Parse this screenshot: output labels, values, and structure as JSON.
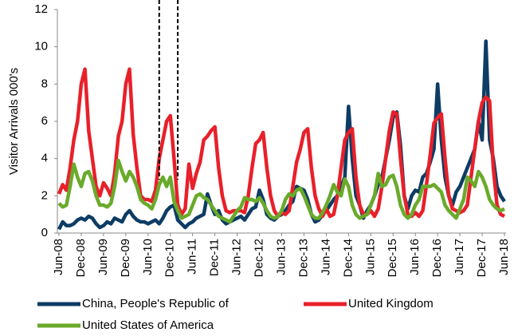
{
  "chart_data": {
    "type": "line",
    "y_label": "Visitor Arrivals 000's",
    "categories": [
      "Jun-08",
      null,
      null,
      null,
      null,
      null,
      "Dec-08",
      null,
      null,
      null,
      null,
      null,
      "Jun-09",
      null,
      null,
      null,
      null,
      null,
      "Dec-09",
      null,
      null,
      null,
      null,
      null,
      "Jun-10",
      null,
      null,
      null,
      null,
      null,
      "Dec-10",
      null,
      null,
      null,
      null,
      null,
      "Jun-11",
      null,
      null,
      null,
      null,
      null,
      "Dec-11",
      null,
      null,
      null,
      null,
      null,
      "Jun-12",
      null,
      null,
      null,
      null,
      null,
      "Dec-12",
      null,
      null,
      null,
      null,
      null,
      "Jun-13",
      null,
      null,
      null,
      null,
      null,
      "Dec-13",
      null,
      null,
      null,
      null,
      null,
      "Jun-14",
      null,
      null,
      null,
      null,
      null,
      "Dec-14",
      null,
      null,
      null,
      null,
      null,
      "Jun-15",
      null,
      null,
      null,
      null,
      null,
      "Dec-15",
      null,
      null,
      null,
      null,
      null,
      "Jun-16",
      null,
      null,
      null,
      null,
      null,
      "Dec-16",
      null,
      null,
      null,
      null,
      null,
      "Jun-17",
      null,
      null,
      null,
      null,
      null,
      "Dec-17",
      null,
      null,
      null,
      null,
      null,
      "Jun-18"
    ],
    "series": [
      {
        "name": "China, People's Republic of",
        "color": "#0d3c64",
        "values": [
          0.2,
          0.6,
          0.4,
          0.4,
          0.5,
          0.7,
          0.8,
          0.7,
          0.9,
          0.8,
          0.5,
          0.3,
          0.4,
          0.6,
          0.5,
          0.8,
          0.7,
          0.6,
          1.0,
          1.2,
          0.9,
          0.7,
          0.6,
          0.6,
          0.5,
          0.6,
          0.7,
          0.5,
          0.8,
          1.2,
          1.4,
          1.5,
          0.7,
          0.5,
          0.3,
          0.5,
          0.6,
          0.8,
          0.9,
          1.0,
          2.1,
          1.5,
          1.0,
          1.2,
          0.7,
          0.5,
          0.6,
          0.7,
          0.8,
          0.9,
          0.7,
          1.0,
          1.3,
          1.4,
          2.3,
          1.8,
          1.0,
          0.8,
          0.7,
          0.9,
          1.0,
          1.2,
          1.5,
          1.7,
          2.5,
          2.4,
          2.3,
          1.8,
          1.0,
          0.6,
          0.7,
          1.0,
          1.2,
          1.5,
          1.8,
          2.0,
          2.5,
          3.0,
          6.8,
          4.0,
          2.0,
          1.5,
          0.8,
          1.2,
          1.5,
          2.0,
          2.6,
          3.0,
          4.0,
          5.0,
          6.2,
          6.5,
          4.7,
          2.0,
          1.3,
          2.0,
          2.3,
          2.2,
          3.0,
          3.2,
          3.8,
          4.5,
          8.0,
          5.0,
          3.0,
          2.0,
          1.5,
          2.2,
          2.5,
          3.0,
          3.5,
          4.0,
          4.5,
          6.0,
          5.0,
          10.3,
          5.0,
          4.0,
          2.5,
          2.0,
          1.7
        ]
      },
      {
        "name": "United Kingdom",
        "color": "#e8202a",
        "values": [
          2.1,
          2.6,
          2.3,
          3.5,
          5.0,
          6.0,
          8.0,
          8.8,
          5.5,
          4.0,
          2.5,
          2.0,
          2.7,
          2.4,
          2.0,
          3.2,
          5.2,
          6.0,
          8.0,
          8.8,
          5.3,
          3.5,
          2.0,
          1.8,
          1.8,
          1.7,
          2.3,
          4.0,
          5.0,
          6.0,
          6.3,
          4.0,
          1.5,
          1.0,
          1.3,
          3.7,
          2.4,
          3.2,
          3.8,
          5.0,
          5.2,
          5.5,
          5.7,
          3.5,
          2.0,
          1.2,
          1.1,
          1.2,
          1.2,
          1.2,
          1.1,
          2.0,
          3.5,
          4.8,
          5.0,
          5.4,
          3.5,
          2.0,
          1.2,
          0.9,
          1.1,
          1.0,
          1.2,
          2.5,
          3.8,
          4.5,
          5.4,
          5.6,
          3.5,
          2.0,
          1.3,
          0.9,
          1.3,
          0.9,
          1.0,
          2.0,
          3.5,
          5.0,
          5.4,
          5.6,
          3.0,
          1.5,
          1.0,
          1.0,
          1.2,
          0.9,
          1.3,
          2.5,
          4.0,
          5.5,
          6.5,
          6.4,
          4.0,
          2.0,
          1.0,
          0.9,
          1.1,
          0.9,
          1.2,
          2.6,
          4.2,
          5.9,
          6.2,
          6.4,
          4.0,
          2.0,
          1.3,
          1.2,
          1.1,
          1.2,
          1.5,
          3.0,
          4.5,
          6.0,
          7.0,
          7.3,
          7.1,
          3.5,
          1.5,
          1.0,
          0.9
        ]
      },
      {
        "name": "United States of America",
        "color": "#6aaa2a",
        "values": [
          1.6,
          1.4,
          1.5,
          2.5,
          3.7,
          3.0,
          2.5,
          3.2,
          3.3,
          2.8,
          2.0,
          1.5,
          1.5,
          1.4,
          1.6,
          2.5,
          3.9,
          3.3,
          2.8,
          3.3,
          3.0,
          2.5,
          1.8,
          1.6,
          1.5,
          1.3,
          1.8,
          2.6,
          3.0,
          2.5,
          3.0,
          1.7,
          1.2,
          0.8,
          0.9,
          1.0,
          1.5,
          2.0,
          2.1,
          1.9,
          1.8,
          1.5,
          1.2,
          0.9,
          0.8,
          0.7,
          0.6,
          0.9,
          1.2,
          1.4,
          1.9,
          1.8,
          1.8,
          1.7,
          1.9,
          1.6,
          1.2,
          0.9,
          0.8,
          0.9,
          1.2,
          1.8,
          2.1,
          2.0,
          2.3,
          2.4,
          2.0,
          1.5,
          1.0,
          0.8,
          0.8,
          1.1,
          1.5,
          2.0,
          2.6,
          2.2,
          2.0,
          2.9,
          2.5,
          1.5,
          1.0,
          0.8,
          0.9,
          1.0,
          1.5,
          2.0,
          3.2,
          2.5,
          2.6,
          3.0,
          3.1,
          2.5,
          1.5,
          1.0,
          0.8,
          1.0,
          1.5,
          1.8,
          2.5,
          2.5,
          2.5,
          2.6,
          2.4,
          2.2,
          1.5,
          1.2,
          1.0,
          0.8,
          1.3,
          1.8,
          3.0,
          2.8,
          2.5,
          3.3,
          3.0,
          2.5,
          1.8,
          1.5,
          1.3,
          1.2,
          1.3
        ]
      }
    ],
    "vlines": [
      27,
      32
    ],
    "ylim": [
      0,
      12
    ],
    "yticks": [
      0,
      2,
      4,
      6,
      8,
      10,
      12
    ],
    "grid": false
  }
}
